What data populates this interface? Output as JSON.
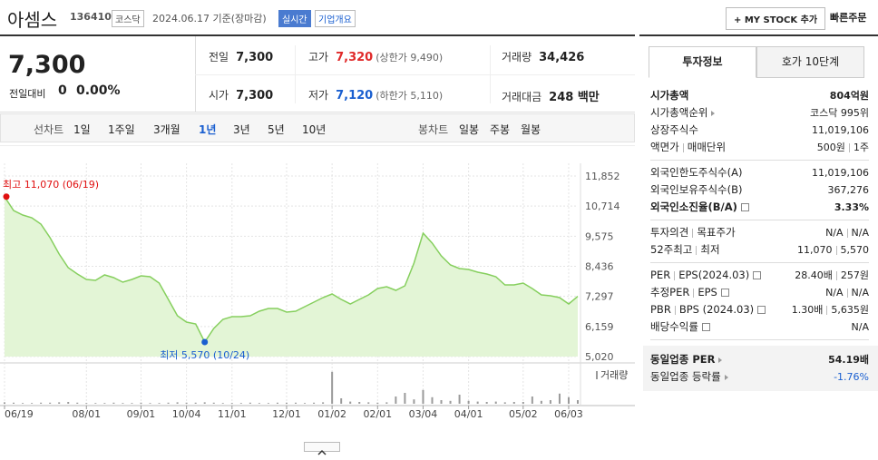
{
  "header": {
    "name": "아셈스",
    "code": "136410",
    "market": "코스닥",
    "date": "2024.06.17 기준(장마감)",
    "realtime": "실시간",
    "overview": "기업개요",
    "add": "+ MY STOCK 추가",
    "quick": "빠른주문"
  },
  "summary": {
    "price": "7,300",
    "change_label": "전일대비",
    "change": "0",
    "rate": "0.00%",
    "cells": [
      [
        {
          "label": "전일",
          "value": "7,300"
        },
        {
          "label": "고가",
          "value": "7,320",
          "extra": "(상한가 9,490)",
          "color": "#e02a2a"
        },
        {
          "label": "거래량",
          "value": "34,426"
        }
      ],
      [
        {
          "label": "시가",
          "value": "7,300"
        },
        {
          "label": "저가",
          "value": "7,120",
          "extra": "(하한가 5,110)",
          "color": "#1a5fd0"
        },
        {
          "label": "거래대금",
          "value": "248 백만"
        }
      ]
    ]
  },
  "tabs": {
    "line_label": "선차트",
    "periods": [
      "1일",
      "1주일",
      "3개월",
      "1년",
      "3년",
      "5년",
      "10년"
    ],
    "active": 3,
    "candle_label": "봉차트",
    "candles": [
      "일봉",
      "주봉",
      "월봉"
    ]
  },
  "info": {
    "tabs": [
      "투자정보",
      "호가 10단계"
    ],
    "active": 0,
    "groups": [
      {
        "rows": [
          {
            "label": [
              "시가총액"
            ],
            "value": [
              "804억원"
            ],
            "bold": true
          },
          {
            "label": [
              "시가총액순위"
            ],
            "arrow": true,
            "value": [
              "코스닥 995위"
            ]
          },
          {
            "label": [
              "상장주식수"
            ],
            "value": [
              "11,019,106"
            ]
          },
          {
            "label": [
              "액면가",
              "매매단위"
            ],
            "value": [
              "500원",
              "1주"
            ]
          }
        ]
      },
      {
        "rows": [
          {
            "label": [
              "외국인한도주식수(A)"
            ],
            "value": [
              "11,019,106"
            ]
          },
          {
            "label": [
              "외국인보유주식수(B)"
            ],
            "value": [
              "367,276"
            ]
          },
          {
            "label": [
              "외국인소진율(B/A)"
            ],
            "help": true,
            "value": [
              "3.33%"
            ],
            "bold": true
          }
        ]
      },
      {
        "rows": [
          {
            "label": [
              "투자의견",
              "목표주가"
            ],
            "value": [
              "N/A",
              "N/A"
            ]
          },
          {
            "label": [
              "52주최고",
              "최저"
            ],
            "value": [
              "11,070",
              "5,570"
            ]
          }
        ]
      },
      {
        "rows": [
          {
            "label": [
              "PER",
              "EPS(2024.03)"
            ],
            "help": true,
            "value": [
              "28.40배",
              "257원"
            ]
          },
          {
            "label": [
              "추정PER",
              "EPS"
            ],
            "help": true,
            "value": [
              "N/A",
              "N/A"
            ]
          },
          {
            "label": [
              "PBR",
              "BPS (2024.03)"
            ],
            "help": true,
            "value": [
              "1.30배",
              "5,635원"
            ]
          },
          {
            "label": [
              "배당수익률"
            ],
            "help": true,
            "value": [
              "N/A"
            ]
          }
        ]
      },
      {
        "shade": true,
        "rows": [
          {
            "label": [
              "동일업종 PER"
            ],
            "arrow": true,
            "value": [
              "54.19배"
            ],
            "bold": true
          },
          {
            "label": [
              "동일업종 등락률"
            ],
            "arrow": true,
            "value": [
              "-1.76%"
            ],
            "color": "#1a5fd0"
          }
        ]
      }
    ]
  },
  "chart_data": {
    "type": "line",
    "categories": [
      "06/19",
      null,
      null,
      null,
      null,
      null,
      null,
      null,
      null,
      "08/01",
      null,
      null,
      null,
      null,
      null,
      "09/01",
      null,
      null,
      null,
      null,
      "10/04",
      null,
      null,
      null,
      null,
      "11/01",
      null,
      null,
      null,
      null,
      null,
      "12/01",
      null,
      null,
      null,
      null,
      "01/02",
      null,
      null,
      null,
      null,
      "02/01",
      null,
      null,
      null,
      null,
      "03/04",
      null,
      null,
      null,
      null,
      "04/01",
      null,
      null,
      null,
      null,
      null,
      "05/02",
      null,
      null,
      null,
      null,
      "06/03",
      null
    ],
    "values": [
      11070,
      10547,
      10375,
      10272,
      10032,
      9517,
      8899,
      8384,
      8144,
      7938,
      7904,
      8110,
      8007,
      7835,
      7938,
      8075,
      8041,
      7801,
      7183,
      6565,
      6325,
      6256,
      5570,
      6084,
      6428,
      6530,
      6530,
      6565,
      6737,
      6839,
      6839,
      6702,
      6737,
      6908,
      7080,
      7251,
      7389,
      7183,
      7011,
      7183,
      7354,
      7595,
      7663,
      7526,
      7698,
      8556,
      9689,
      9311,
      8831,
      8487,
      8350,
      8316,
      8213,
      8144,
      8041,
      7732,
      7732,
      7801,
      7595,
      7354,
      7320,
      7251,
      7011,
      7300
    ],
    "color": "#86cf5e",
    "fill": "#e3f5d6",
    "ylim": [
      5020,
      11852
    ],
    "yticks": [
      {
        "value": 5020,
        "label": "5,020"
      },
      {
        "value": 6159,
        "label": "6,159"
      },
      {
        "value": 7297,
        "label": "7,297"
      },
      {
        "value": 8436,
        "label": "8,436"
      },
      {
        "value": 9575,
        "label": "9,575"
      },
      {
        "value": 10714,
        "label": "10,714"
      },
      {
        "value": 11852,
        "label": "11,852"
      }
    ],
    "grid": true,
    "annotations": {
      "high": "최고 11,070 (06/19)",
      "high_color": "#e01010",
      "low": "최저 5,570 (10/24)",
      "low_color": "#1a5fd0"
    },
    "volume": {
      "label": "거래량",
      "color": "#9a9a9a",
      "ylim": [
        0,
        100
      ],
      "values": [
        4,
        3,
        2,
        2,
        3,
        3,
        4,
        5,
        3,
        2,
        2,
        2,
        3,
        2,
        2,
        3,
        2,
        2,
        3,
        4,
        3,
        3,
        4,
        3,
        2,
        2,
        2,
        3,
        2,
        2,
        3,
        3,
        3,
        2,
        3,
        4,
        88,
        15,
        6,
        5,
        4,
        3,
        4,
        20,
        30,
        12,
        38,
        18,
        10,
        8,
        25,
        8,
        6,
        5,
        6,
        4,
        5,
        5,
        20,
        8,
        10,
        28,
        18,
        10
      ]
    }
  }
}
